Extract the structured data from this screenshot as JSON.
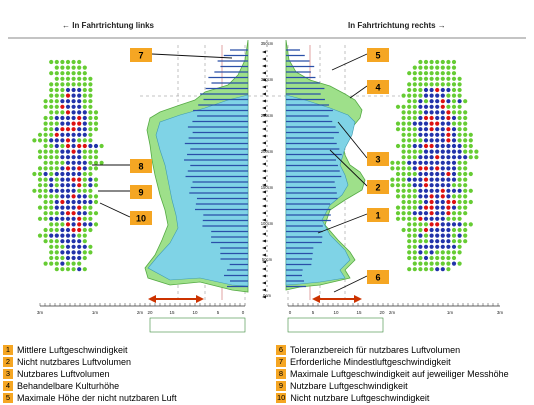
{
  "header": {
    "left_label": "← In Fahrtrichtung links",
    "right_label": "In Fahrtrichtung rechts →"
  },
  "center_scale_labels": [
    "350cm",
    "300cm",
    "250cm",
    "200cm",
    "150cm",
    "100cm",
    "50cm",
    "0cm"
  ],
  "callouts": [
    {
      "n": "1"
    },
    {
      "n": "2"
    },
    {
      "n": "3"
    },
    {
      "n": "4"
    },
    {
      "n": "5"
    },
    {
      "n": "6"
    },
    {
      "n": "7"
    },
    {
      "n": "8"
    },
    {
      "n": "9"
    },
    {
      "n": "10"
    }
  ],
  "bottom_axis": {
    "left_ticks": [
      "3m",
      "1m",
      "2m",
      "20",
      "15",
      "10",
      "5",
      "0"
    ],
    "right_ticks": [
      "0",
      "5",
      "10",
      "15",
      "20",
      "2m",
      "1m",
      "3m"
    ]
  },
  "legend": {
    "left": [
      {
        "n": "1",
        "text": "Mittlere Luftgeschwindigkeit"
      },
      {
        "n": "2",
        "text": "Nicht nutzbares Luftvolumen"
      },
      {
        "n": "3",
        "text": "Nutzbares Luftvolumen"
      },
      {
        "n": "4",
        "text": "Behandelbare Kulturhöhe"
      },
      {
        "n": "5",
        "text": "Maximale Höhe der nicht nutzbaren Luft"
      }
    ],
    "right": [
      {
        "n": "6",
        "text": "Toleranzbereich für nutzbares Luftvolumen"
      },
      {
        "n": "7",
        "text": "Erforderliche Mindestluftgeschwindigkeit"
      },
      {
        "n": "8",
        "text": "Maximale Luftgeschwindigkeit auf jeweiliger Messhöhe"
      },
      {
        "n": "9",
        "text": "Nutzbare Luftgeschwindigkeit"
      },
      {
        "n": "10",
        "text": "Nicht nutzbare Luftgeschwindigkeit"
      }
    ]
  },
  "colors": {
    "outer_fill": "#9ee08a",
    "inner_fill": "#7fd3e6",
    "bars": "#2a4fa8",
    "callout": "#f5a623",
    "arrow": "#cc3300",
    "dot_green": "#66cc33",
    "dot_blue": "#2233aa",
    "dot_red": "#dd1111"
  }
}
